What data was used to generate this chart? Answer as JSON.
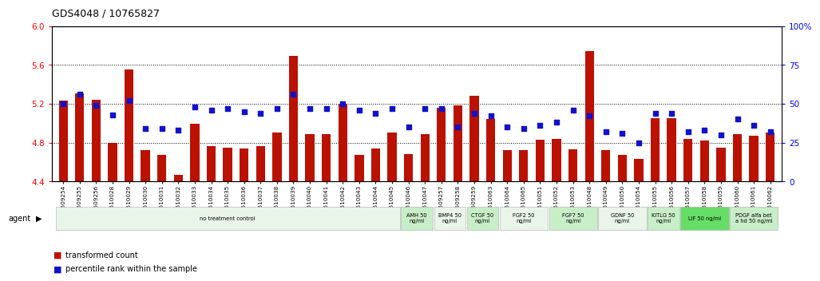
{
  "title": "GDS4048 / 10765827",
  "samples": [
    "GSM509254",
    "GSM509255",
    "GSM509256",
    "GSM510028",
    "GSM510029",
    "GSM510030",
    "GSM510031",
    "GSM510032",
    "GSM510033",
    "GSM510034",
    "GSM510035",
    "GSM510036",
    "GSM510037",
    "GSM510038",
    "GSM510039",
    "GSM510040",
    "GSM510041",
    "GSM510042",
    "GSM510043",
    "GSM510044",
    "GSM510045",
    "GSM510046",
    "GSM510047",
    "GSM509257",
    "GSM509258",
    "GSM509259",
    "GSM510063",
    "GSM510064",
    "GSM510065",
    "GSM510051",
    "GSM510052",
    "GSM510053",
    "GSM510048",
    "GSM510049",
    "GSM510050",
    "GSM510054",
    "GSM510055",
    "GSM510056",
    "GSM510057",
    "GSM510058",
    "GSM510059",
    "GSM510060",
    "GSM510061",
    "GSM510062"
  ],
  "bar_heights": [
    5.23,
    5.31,
    5.24,
    4.8,
    5.55,
    4.72,
    4.67,
    4.47,
    4.99,
    4.76,
    4.75,
    4.74,
    4.76,
    4.9,
    5.69,
    4.89,
    4.89,
    5.2,
    4.67,
    4.74,
    4.9,
    4.68,
    4.89,
    5.16,
    5.18,
    5.28,
    5.04,
    4.72,
    4.72,
    4.83,
    4.84,
    4.73,
    5.74,
    4.72,
    4.67,
    4.63,
    5.05,
    5.05,
    4.84,
    4.82,
    4.75,
    4.89,
    4.87,
    4.9
  ],
  "percentile": [
    50,
    56,
    49,
    43,
    52,
    34,
    34,
    33,
    48,
    46,
    47,
    45,
    44,
    47,
    56,
    47,
    47,
    50,
    46,
    44,
    47,
    35,
    47,
    47,
    35,
    44,
    42,
    35,
    34,
    36,
    38,
    46,
    42,
    32,
    31,
    25,
    44,
    44,
    32,
    33,
    30,
    40,
    36,
    32
  ],
  "agent_groups": [
    {
      "label": "no treatment control",
      "start": 0,
      "end": 21,
      "color": "#e8f5e8"
    },
    {
      "label": "AMH 50\nng/ml",
      "start": 21,
      "end": 23,
      "color": "#c8eec8"
    },
    {
      "label": "BMP4 50\nng/ml",
      "start": 23,
      "end": 25,
      "color": "#e8f5e8"
    },
    {
      "label": "CTGF 50\nng/ml",
      "start": 25,
      "end": 27,
      "color": "#c8eec8"
    },
    {
      "label": "FGF2 50\nng/ml",
      "start": 27,
      "end": 30,
      "color": "#e8f5e8"
    },
    {
      "label": "FGF7 50\nng/ml",
      "start": 30,
      "end": 33,
      "color": "#c8eec8"
    },
    {
      "label": "GDNF 50\nng/ml",
      "start": 33,
      "end": 36,
      "color": "#e8f5e8"
    },
    {
      "label": "KITLG 50\nng/ml",
      "start": 36,
      "end": 38,
      "color": "#c8eec8"
    },
    {
      "label": "LIF 50 ng/ml",
      "start": 38,
      "end": 41,
      "color": "#66dd66"
    },
    {
      "label": "PDGF alfa bet\na hd 50 ng/ml",
      "start": 41,
      "end": 44,
      "color": "#c8eec8"
    }
  ],
  "ylim_left": [
    4.4,
    6.0
  ],
  "ylim_right": [
    0,
    100
  ],
  "yticks_left": [
    4.4,
    4.8,
    5.2,
    5.6,
    6.0
  ],
  "yticks_right": [
    0,
    25,
    50,
    75,
    100
  ],
  "bar_color": "#bb1100",
  "dot_color": "#1111cc",
  "bar_bottom": 4.4,
  "bg_color": "#ffffff"
}
